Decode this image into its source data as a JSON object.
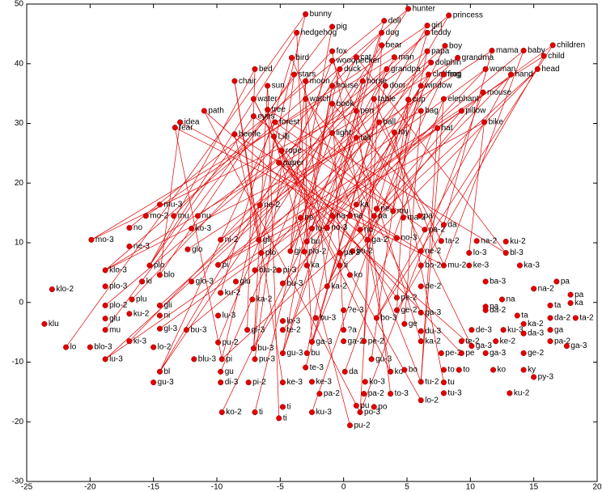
{
  "chart_data": {
    "type": "scatter",
    "xlim": [
      -25,
      20
    ],
    "ylim": [
      -30,
      50
    ],
    "xticks": [
      -25,
      -20,
      -15,
      -10,
      -5,
      0,
      5,
      10,
      15,
      20
    ],
    "yticks": [
      -30,
      -20,
      -10,
      0,
      10,
      20,
      30,
      40,
      50
    ],
    "grid": false,
    "link_color": "#e00000",
    "series": [
      {
        "color": "#e00000",
        "labels": [
          "bunny",
          "hunter",
          "princess",
          "pig",
          "doll",
          "girl",
          "hedgehog",
          "dog",
          "teddy",
          "boy",
          "children",
          "bear",
          "fox",
          "papa",
          "mama",
          "baby",
          "child",
          "bird",
          "woodpecker",
          "cat",
          "man",
          "grandma",
          "dolphin",
          "bed",
          "stars",
          "duck",
          "grandpa",
          "woman",
          "head",
          "chair",
          "sun",
          "moon",
          "house",
          "horse",
          "door",
          "clothing",
          "frog",
          "window",
          "hand",
          "mouse",
          "water",
          "watch",
          "book",
          "table",
          "cup",
          "elephant",
          "path",
          "tree",
          "pen",
          "bag",
          "pillow",
          "eyes",
          "idea",
          "forest",
          "ball",
          "bike",
          "fear",
          "beetle",
          "Lilli",
          "light",
          "tall",
          "hat",
          "toy",
          "rope",
          "paper"
        ],
        "x": [
          -3.0,
          5.1,
          8.3,
          -0.9,
          3.2,
          6.6,
          -3.7,
          3.0,
          6.6,
          8.0,
          16.5,
          3.0,
          -0.9,
          6.6,
          11.7,
          14.2,
          15.8,
          -4.1,
          -0.9,
          1.0,
          4.0,
          9.0,
          6.9,
          -7.0,
          -3.9,
          -0.3,
          3.4,
          11.2,
          15.3,
          -8.6,
          -6.0,
          -3.0,
          -0.9,
          1.5,
          3.3,
          6.7,
          7.9,
          6.1,
          13.2,
          11.0,
          -7.1,
          -3.0,
          -0.9,
          2.4,
          5.1,
          7.9,
          -11.0,
          -6.0,
          1.0,
          6.1,
          9.3,
          -7.1,
          -12.9,
          -5.4,
          2.8,
          11.1,
          -13.3,
          -8.6,
          -5.5,
          -0.9,
          1.0,
          7.4,
          4.0,
          -4.9,
          -5.1
        ],
        "values": [
          48.3,
          49.2,
          48.1,
          46.2,
          47.2,
          46.4,
          45.2,
          45.2,
          45.2,
          43.0,
          43.1,
          43.1,
          42.1,
          42.1,
          42.2,
          42.2,
          41.3,
          41.0,
          40.5,
          41.1,
          41.1,
          41.0,
          40.2,
          39.1,
          38.2,
          39.1,
          39.1,
          39.1,
          39.1,
          37.1,
          36.3,
          37.1,
          36.3,
          37.1,
          36.3,
          38.2,
          38.2,
          36.3,
          38.2,
          35.2,
          34.1,
          34.1,
          33.3,
          34.1,
          34.0,
          34.1,
          32.1,
          32.3,
          32.1,
          32.1,
          32.1,
          31.2,
          30.2,
          30.2,
          30.2,
          30.2,
          29.3,
          28.2,
          27.8,
          28.4,
          27.6,
          29.2,
          28.5,
          25.4,
          23.4
        ]
      },
      {
        "color": "#e00000",
        "labels": [
          "mo-3",
          "klo-2",
          "klu",
          "lo",
          "blo-3",
          "klo-3",
          "plo-3",
          "plo-2",
          "glu",
          "mu",
          "lu-3",
          "no",
          "ne-3",
          "mo-2",
          "mu-3",
          "plo",
          "ki",
          "plu",
          "ku-2",
          "ki-3",
          "blo",
          "gli",
          "ni",
          "gl-3",
          "lo-2",
          "bl",
          "gu-3",
          "mu",
          "ko-3",
          "nu",
          "ni-2",
          "glo",
          "glo-3",
          "bu-3",
          "blu-3",
          "pi",
          "glu",
          "ku-2",
          "lu-3",
          "pu-2",
          "pi",
          "gu",
          "di-3",
          "ko-2",
          "ne-2",
          "gli",
          "plo",
          "blu-2",
          "ka-2",
          "gi-3",
          "bu-3",
          "pu-3",
          "pi-2",
          "ti",
          "ne",
          "gi",
          "pi-3",
          "bu-3",
          "lo-3",
          "te-2",
          "gu-3",
          "ke-3",
          "ti",
          "ti",
          "ka",
          "bu",
          "lu-2",
          "plo-2",
          "bu-3",
          "bu",
          "ga-3",
          "te-3",
          "ke-3",
          "ku-3",
          "pa-2",
          "no-3",
          "na-2",
          "ka",
          "ne",
          "nu",
          "ga-2",
          "bo-2",
          "pa-3",
          "ti",
          "ko",
          "ka-2",
          "?e-3",
          "?a",
          "ga-2",
          "pe-2",
          "bo-3",
          "gu-3",
          "ko-3",
          "da",
          "pa-2",
          "po-3",
          "pu",
          "pu-2",
          "po",
          "to-3",
          "ko",
          "ge",
          "bo",
          "ne",
          "pa",
          "mu",
          "ma-2",
          "no-3",
          "pa",
          "pa-2",
          "da",
          "ta-2",
          "na-2",
          "lo-3",
          "ke-3",
          "mu-2",
          "bo-2",
          "ne-2",
          "de-2",
          "pe-2",
          "ge-2",
          "ga-3",
          "du-3",
          "ka-2",
          "pe-3",
          "tu-2",
          "tu-3",
          "tu",
          "to",
          "lo-2",
          "ga-3",
          "pe",
          "to",
          "de-3",
          "te-2",
          "bl-3",
          "ku-2",
          "ka-3",
          "na-2",
          "ba-3",
          "da-2",
          "ke-2",
          "ku-3",
          "ga-3",
          "ku-2",
          "ko",
          "pa",
          "ta",
          "na",
          "da-3",
          "ka-2",
          "ge-2",
          "ky",
          "py-3",
          "pa-2",
          "ga",
          "da-2",
          "ta",
          "pa",
          "ka",
          "pa",
          "ga-3",
          "ta-2"
        ],
        "x": [
          -19.9,
          -23.0,
          -23.6,
          -21.9,
          -20.0,
          -18.8,
          -18.8,
          -18.8,
          -18.8,
          -18.8,
          -18.8,
          -16.9,
          -16.9,
          -15.6,
          -14.5,
          -15.3,
          -15.9,
          -16.7,
          -16.9,
          -16.9,
          -14.5,
          -14.5,
          -14.5,
          -14.5,
          -15.0,
          -14.5,
          -15.0,
          -13.4,
          -12.0,
          -11.5,
          -9.7,
          -12.3,
          -12.0,
          -12.4,
          -11.8,
          -9.9,
          -8.5,
          -9.7,
          -9.9,
          -9.9,
          -9.6,
          -9.7,
          -9.7,
          -9.6,
          -6.6,
          -6.7,
          -6.5,
          -7.0,
          -7.2,
          -7.6,
          -7.1,
          -7.0,
          -7.5,
          -7.0,
          -3.4,
          -4.2,
          -5.1,
          -4.8,
          -4.8,
          -4.8,
          -4.8,
          -4.8,
          -4.8,
          -5.1,
          -2.9,
          -2.9,
          -2.5,
          -3.1,
          -2.2,
          -2.9,
          -2.5,
          -3.0,
          -2.5,
          -2.5,
          -1.9,
          -1.3,
          -0.9,
          1.0,
          0.5,
          1.3,
          1.9,
          0.7,
          -0.3,
          -0.3,
          0.5,
          -1.3,
          0.0,
          0.0,
          0.0,
          1.6,
          2.6,
          2.2,
          1.7,
          0.1,
          1.6,
          1.3,
          1.0,
          0.5,
          2.4,
          3.7,
          3.7,
          4.8,
          4.8,
          2.6,
          2.4,
          3.9,
          4.7,
          4.2,
          6.0,
          6.4,
          7.9,
          7.7,
          10.5,
          9.9,
          9.9,
          7.9,
          6.1,
          6.1,
          6.1,
          4.2,
          4.2,
          6.1,
          6.1,
          6.1,
          7.7,
          6.1,
          7.9,
          7.9,
          7.9,
          6.1,
          10.1,
          9.3,
          9.1,
          10.1,
          9.3,
          12.8,
          12.8,
          13.9,
          15.0,
          11.2,
          11.2,
          12.0,
          12.6,
          11.2,
          13.1,
          11.8,
          11.2,
          13.7,
          12.5,
          14.2,
          14.2,
          14.2,
          14.2,
          15.0,
          16.3,
          16.3,
          16.3,
          16.3,
          17.9,
          17.9,
          16.8,
          17.6,
          18.3
        ],
        "values": [
          10.5,
          2.2,
          -3.6,
          -7.5,
          -7.5,
          5.4,
          2.7,
          -0.5,
          -2.7,
          -4.6,
          -9.5,
          12.5,
          9.4,
          14.5,
          16.4,
          6.2,
          3.5,
          0.5,
          -1.9,
          -6.5,
          4.6,
          -0.5,
          -2.2,
          -4.4,
          -7.5,
          -11.6,
          -13.4,
          14.5,
          12.4,
          14.5,
          10.5,
          8.9,
          3.5,
          -4.6,
          -9.5,
          6.3,
          3.5,
          1.6,
          -2.2,
          -6.7,
          -9.5,
          -11.6,
          -13.4,
          -18.4,
          16.3,
          10.5,
          8.3,
          5.4,
          0.5,
          -4.6,
          -7.7,
          -9.5,
          -13.4,
          -18.4,
          14.2,
          8.6,
          5.4,
          3.2,
          -3.1,
          -4.6,
          -8.5,
          -13.4,
          -17.5,
          -19.4,
          6.2,
          10.2,
          12.4,
          8.5,
          -2.6,
          -8.5,
          -6.6,
          -10.9,
          -13.3,
          -18.4,
          -15.3,
          12.5,
          14.5,
          16.4,
          14.5,
          12.2,
          10.5,
          8.6,
          8.3,
          6.2,
          4.6,
          2.7,
          -1.3,
          -4.6,
          -6.5,
          -6.5,
          -2.6,
          -9.5,
          -13.3,
          -11.6,
          -15.3,
          -18.4,
          -17.3,
          -20.6,
          -17.5,
          -15.3,
          -11.6,
          -3.6,
          -11.3,
          15.7,
          14.5,
          15.3,
          14.2,
          10.8,
          14.5,
          12.2,
          13.0,
          10.3,
          10.3,
          8.3,
          6.2,
          6.2,
          6.2,
          8.6,
          2.7,
          0.8,
          -1.3,
          -1.7,
          -4.8,
          -6.5,
          -8.5,
          -13.3,
          -15.2,
          -13.4,
          -11.3,
          -16.4,
          -7.3,
          -8.5,
          -11.3,
          -4.6,
          -6.5,
          8.3,
          10.2,
          6.2,
          2.3,
          3.5,
          -1.3,
          -6.5,
          -4.6,
          -8.5,
          -15.2,
          -11.3,
          -0.7,
          -2.2,
          0.5,
          -5.2,
          -3.6,
          -8.5,
          -11.3,
          -12.5,
          -6.5,
          -4.6,
          -2.6,
          -0.5,
          1.3,
          -0.1,
          3.5,
          -7.3,
          -2.6
        ]
      }
    ],
    "links": [
      [
        0,
        3
      ],
      [
        0,
        40
      ],
      [
        1,
        5
      ],
      [
        1,
        45
      ],
      [
        2,
        7
      ],
      [
        2,
        50
      ],
      [
        3,
        9
      ],
      [
        3,
        55
      ],
      [
        4,
        11
      ],
      [
        4,
        60
      ],
      [
        5,
        13
      ],
      [
        5,
        65
      ],
      [
        6,
        15
      ],
      [
        6,
        70
      ],
      [
        7,
        17
      ],
      [
        7,
        75
      ],
      [
        8,
        19
      ],
      [
        8,
        80
      ],
      [
        9,
        21
      ],
      [
        9,
        85
      ],
      [
        10,
        23
      ],
      [
        10,
        90
      ],
      [
        11,
        25
      ],
      [
        11,
        95
      ],
      [
        12,
        27
      ],
      [
        12,
        100
      ],
      [
        13,
        29
      ],
      [
        13,
        105
      ],
      [
        14,
        31
      ],
      [
        14,
        110
      ],
      [
        15,
        33
      ],
      [
        15,
        115
      ],
      [
        16,
        35
      ],
      [
        16,
        120
      ],
      [
        17,
        37
      ],
      [
        17,
        125
      ],
      [
        18,
        39
      ],
      [
        18,
        130
      ],
      [
        19,
        41
      ],
      [
        19,
        135
      ],
      [
        20,
        43
      ],
      [
        20,
        0
      ],
      [
        21,
        45
      ],
      [
        21,
        5
      ],
      [
        22,
        47
      ],
      [
        22,
        10
      ],
      [
        23,
        49
      ],
      [
        23,
        15
      ],
      [
        24,
        51
      ],
      [
        24,
        20
      ],
      [
        25,
        53
      ],
      [
        25,
        25
      ],
      [
        26,
        55
      ],
      [
        26,
        30
      ],
      [
        27,
        57
      ],
      [
        27,
        35
      ],
      [
        28,
        59
      ],
      [
        28,
        40
      ],
      [
        29,
        61
      ],
      [
        29,
        45
      ],
      [
        30,
        63
      ],
      [
        30,
        50
      ],
      [
        31,
        65
      ],
      [
        31,
        55
      ],
      [
        32,
        67
      ],
      [
        32,
        60
      ],
      [
        33,
        69
      ],
      [
        33,
        65
      ],
      [
        34,
        71
      ],
      [
        34,
        70
      ],
      [
        35,
        73
      ],
      [
        35,
        75
      ],
      [
        36,
        75
      ],
      [
        36,
        80
      ],
      [
        37,
        77
      ],
      [
        37,
        85
      ],
      [
        38,
        79
      ],
      [
        38,
        90
      ],
      [
        39,
        81
      ],
      [
        39,
        95
      ],
      [
        40,
        83
      ],
      [
        40,
        100
      ],
      [
        41,
        85
      ],
      [
        41,
        105
      ],
      [
        42,
        87
      ],
      [
        42,
        110
      ],
      [
        43,
        89
      ],
      [
        43,
        115
      ],
      [
        44,
        91
      ],
      [
        44,
        120
      ],
      [
        45,
        93
      ],
      [
        45,
        125
      ],
      [
        46,
        95
      ],
      [
        46,
        130
      ],
      [
        47,
        97
      ],
      [
        47,
        135
      ],
      [
        48,
        99
      ],
      [
        48,
        0
      ],
      [
        49,
        101
      ],
      [
        49,
        5
      ],
      [
        50,
        103
      ],
      [
        50,
        10
      ],
      [
        51,
        105
      ],
      [
        51,
        15
      ],
      [
        52,
        107
      ],
      [
        52,
        20
      ],
      [
        53,
        109
      ],
      [
        53,
        25
      ],
      [
        54,
        111
      ],
      [
        54,
        30
      ],
      [
        55,
        113
      ],
      [
        55,
        35
      ],
      [
        56,
        115
      ],
      [
        56,
        40
      ],
      [
        57,
        117
      ],
      [
        57,
        45
      ],
      [
        58,
        119
      ],
      [
        58,
        50
      ],
      [
        59,
        121
      ],
      [
        59,
        55
      ],
      [
        60,
        123
      ],
      [
        60,
        60
      ],
      [
        61,
        125
      ],
      [
        61,
        65
      ],
      [
        62,
        127
      ],
      [
        62,
        70
      ],
      [
        63,
        129
      ],
      [
        63,
        75
      ],
      [
        64,
        131
      ],
      [
        64,
        80
      ]
    ]
  }
}
